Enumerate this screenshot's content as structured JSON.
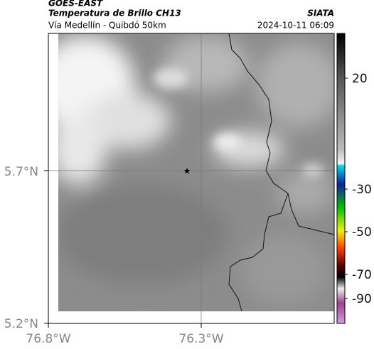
{
  "header": {
    "title": "GOES-EAST",
    "subtitle": "Temperatura de Brillo CH13",
    "source": "SIATA",
    "location": "Vía Medellín - Quibdó 50km",
    "datetime": "2024-10-11 06:09"
  },
  "axes": {
    "y_labels": [
      "5.7°N",
      "5.2°N"
    ],
    "x_labels": [
      "76.8°W",
      "76.3°W"
    ]
  },
  "colorbar": {
    "labels": [
      "20",
      "-30",
      "-50",
      "-70",
      "-90"
    ]
  }
}
